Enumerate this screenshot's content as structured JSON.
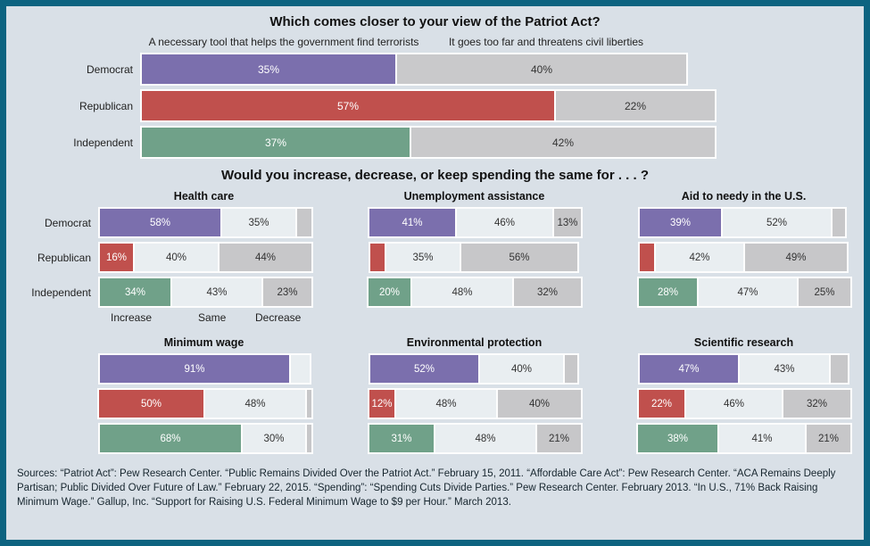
{
  "patriot": {
    "title": "Which comes closer to your view of the Patriot Act?",
    "col_labels": [
      "A necessary tool that helps the government find terrorists",
      "It goes too far and threatens civil liberties"
    ]
  },
  "spending": {
    "title": "Would you increase, decrease, or keep spending the same for . . . ?",
    "legend": [
      "Increase",
      "Same",
      "Decrease"
    ]
  },
  "sources": "Sources: “Patriot Act”: Pew Research Center. “Public Remains Divided Over the Patriot Act.” February 15, 2011. “Affordable Care Act”: Pew Research Center. “ACA Remains Deeply Partisan; Public Divided Over Future of Law.” February 22, 2015. “Spending”: “Spending Cuts Divide Parties.” Pew Research Center. February 2013. “In U.S., 71% Back Raising Minimum Wage.” Gallup, Inc. “Support for Raising U.S. Federal Minimum Wage to $9 per Hour.” March 2013.",
  "colors": {
    "democrat": "#7b6fad",
    "republican": "#c0504d",
    "independent": "#70a189",
    "neutral_gray": "#c9c9cb",
    "same_light": "#e9eef1",
    "decrease_gray": "#c7c7c9",
    "frame": "#0d6380",
    "background": "#d9e0e7"
  },
  "chart_data": [
    {
      "id": "patriot-act",
      "type": "bar",
      "orientation": "horizontal-stacked",
      "title": "Which comes closer to your view of the Patriot Act?",
      "categories": [
        "Democrat",
        "Republican",
        "Independent"
      ],
      "series": [
        {
          "name": "A necessary tool that helps the government find terrorists",
          "values": [
            35,
            57,
            37
          ]
        },
        {
          "name": "It goes too far and threatens civil liberties",
          "values": [
            40,
            22,
            42
          ]
        }
      ],
      "labels": [
        [
          "35%",
          "40%"
        ],
        [
          "57%",
          "22%"
        ],
        [
          "37%",
          "42%"
        ]
      ],
      "xlim": [
        0,
        100
      ]
    },
    {
      "id": "health-care",
      "type": "bar",
      "orientation": "horizontal-stacked",
      "title": "Health care",
      "categories": [
        "Democrat",
        "Republican",
        "Independent"
      ],
      "series": [
        {
          "name": "Increase",
          "values": [
            58,
            16,
            34
          ]
        },
        {
          "name": "Same",
          "values": [
            35,
            40,
            43
          ]
        },
        {
          "name": "Decrease",
          "values": [
            7,
            44,
            23
          ]
        }
      ],
      "labels": [
        [
          "58%",
          "35%",
          ""
        ],
        [
          "16%",
          "40%",
          "44%"
        ],
        [
          "34%",
          "43%",
          "23%"
        ]
      ],
      "xlim": [
        0,
        100
      ]
    },
    {
      "id": "unemployment-assistance",
      "type": "bar",
      "orientation": "horizontal-stacked",
      "title": "Unemployment assistance",
      "categories": [
        "Democrat",
        "Republican",
        "Independent"
      ],
      "series": [
        {
          "name": "Increase",
          "values": [
            41,
            7,
            20
          ]
        },
        {
          "name": "Same",
          "values": [
            46,
            35,
            48
          ]
        },
        {
          "name": "Decrease",
          "values": [
            13,
            56,
            32
          ]
        }
      ],
      "labels": [
        [
          "41%",
          "46%",
          "13%"
        ],
        [
          "",
          "35%",
          "56%"
        ],
        [
          "20%",
          "48%",
          "32%"
        ]
      ],
      "xlim": [
        0,
        100
      ]
    },
    {
      "id": "aid-to-needy",
      "type": "bar",
      "orientation": "horizontal-stacked",
      "title": "Aid to needy in the U.S.",
      "categories": [
        "Democrat",
        "Republican",
        "Independent"
      ],
      "series": [
        {
          "name": "Increase",
          "values": [
            39,
            7,
            28
          ]
        },
        {
          "name": "Same",
          "values": [
            52,
            42,
            47
          ]
        },
        {
          "name": "Decrease",
          "values": [
            6,
            49,
            25
          ]
        }
      ],
      "labels": [
        [
          "39%",
          "52%",
          ""
        ],
        [
          "",
          "42%",
          "49%"
        ],
        [
          "28%",
          "47%",
          "25%"
        ]
      ],
      "xlim": [
        0,
        100
      ]
    },
    {
      "id": "minimum-wage",
      "type": "bar",
      "orientation": "horizontal-stacked",
      "title": "Minimum wage",
      "categories": [
        "Democrat",
        "Republican",
        "Independent"
      ],
      "series": [
        {
          "name": "Increase",
          "values": [
            91,
            50,
            68
          ]
        },
        {
          "name": "Same",
          "values": [
            9,
            48,
            30
          ]
        },
        {
          "name": "Decrease",
          "values": [
            0,
            2,
            2
          ]
        }
      ],
      "labels": [
        [
          "91%",
          "",
          ""
        ],
        [
          "50%",
          "48%",
          ""
        ],
        [
          "68%",
          "30%",
          ""
        ]
      ],
      "xlim": [
        0,
        100
      ]
    },
    {
      "id": "environmental-protection",
      "type": "bar",
      "orientation": "horizontal-stacked",
      "title": "Environmental protection",
      "categories": [
        "Democrat",
        "Republican",
        "Independent"
      ],
      "series": [
        {
          "name": "Increase",
          "values": [
            52,
            12,
            31
          ]
        },
        {
          "name": "Same",
          "values": [
            40,
            48,
            48
          ]
        },
        {
          "name": "Decrease",
          "values": [
            6,
            40,
            21
          ]
        }
      ],
      "labels": [
        [
          "52%",
          "40%",
          ""
        ],
        [
          "12%",
          "48%",
          "40%"
        ],
        [
          "31%",
          "48%",
          "21%"
        ]
      ],
      "xlim": [
        0,
        100
      ]
    },
    {
      "id": "scientific-research",
      "type": "bar",
      "orientation": "horizontal-stacked",
      "title": "Scientific research",
      "categories": [
        "Democrat",
        "Republican",
        "Independent"
      ],
      "series": [
        {
          "name": "Increase",
          "values": [
            47,
            22,
            38
          ]
        },
        {
          "name": "Same",
          "values": [
            43,
            46,
            41
          ]
        },
        {
          "name": "Decrease",
          "values": [
            8,
            32,
            21
          ]
        }
      ],
      "labels": [
        [
          "47%",
          "43%",
          ""
        ],
        [
          "22%",
          "46%",
          "32%"
        ],
        [
          "38%",
          "41%",
          "21%"
        ]
      ],
      "xlim": [
        0,
        100
      ]
    }
  ]
}
